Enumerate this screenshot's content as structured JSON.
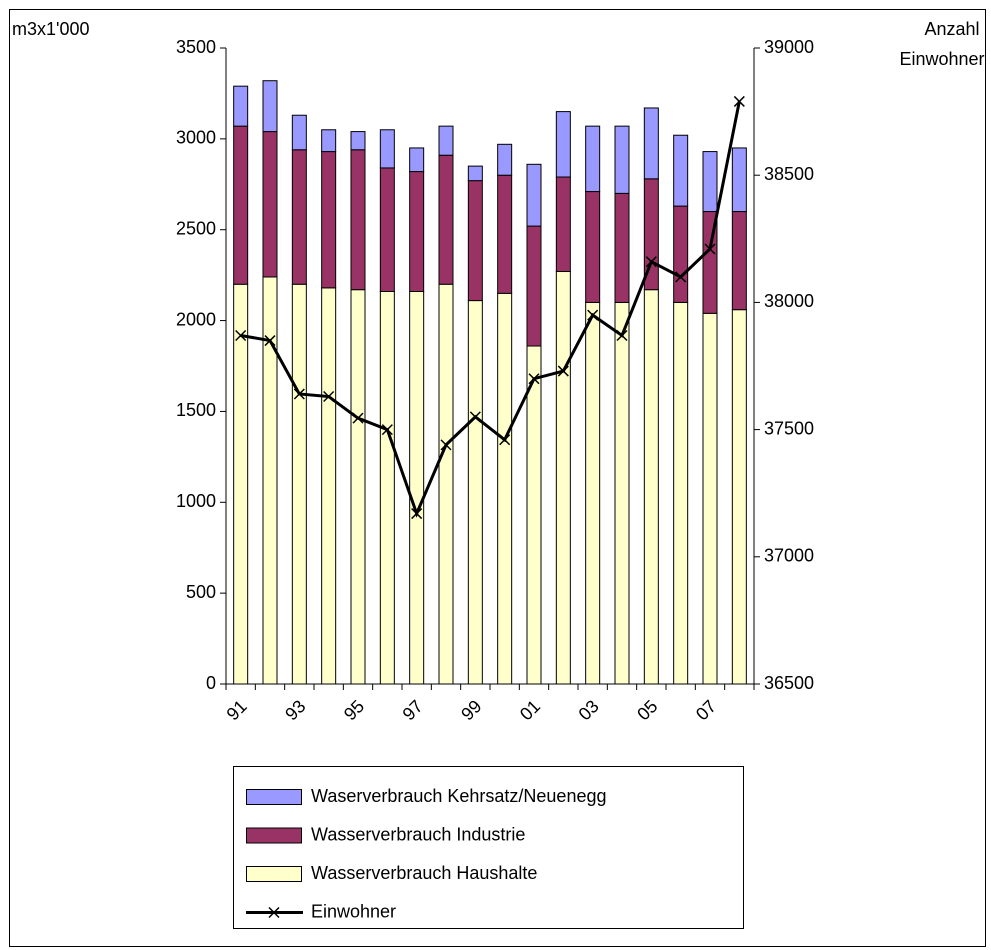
{
  "chart_data": {
    "type": "bar",
    "stacked": true,
    "y_label": "m3x1'000",
    "y2_label": [
      "Anzahl",
      "Einwohner"
    ],
    "categories": [
      "91",
      null,
      "93",
      null,
      "95",
      null,
      "97",
      null,
      "99",
      null,
      "01",
      null,
      "03",
      null,
      "05",
      null,
      "07",
      null
    ],
    "ylim": [
      0,
      3500
    ],
    "yticks": [
      0,
      500,
      1000,
      1500,
      2000,
      2500,
      3000,
      3500
    ],
    "y2lim": [
      36500,
      39000
    ],
    "y2ticks": [
      36500,
      37000,
      37500,
      38000,
      38500,
      39000
    ],
    "series": [
      {
        "name": "Wasserverbrauch Haushalte",
        "color": "#ffffcc",
        "values": [
          2200,
          2240,
          2200,
          2180,
          2170,
          2160,
          2160,
          2200,
          2110,
          2150,
          1860,
          2270,
          2100,
          2100,
          2170,
          2100,
          2040,
          2060
        ]
      },
      {
        "name": "Wasserverbrauch Industrie",
        "color": "#993366",
        "values": [
          870,
          800,
          740,
          750,
          770,
          680,
          660,
          710,
          660,
          650,
          660,
          520,
          610,
          600,
          610,
          530,
          560,
          540
        ]
      },
      {
        "name": "Waserverbrauch Kehrsatz/Neuenegg",
        "color": "#9999ff",
        "values": [
          220,
          280,
          190,
          120,
          100,
          210,
          130,
          160,
          80,
          170,
          340,
          360,
          360,
          370,
          390,
          390,
          330,
          350
        ]
      },
      {
        "name": "Einwohner",
        "color": "#000000",
        "type": "line",
        "axis": "y2",
        "values": [
          37870,
          37850,
          37640,
          37630,
          37545,
          37500,
          37170,
          37440,
          37550,
          37460,
          37700,
          37730,
          37950,
          37870,
          38160,
          38100,
          38210,
          38790
        ]
      }
    ],
    "legend": "bottom"
  }
}
